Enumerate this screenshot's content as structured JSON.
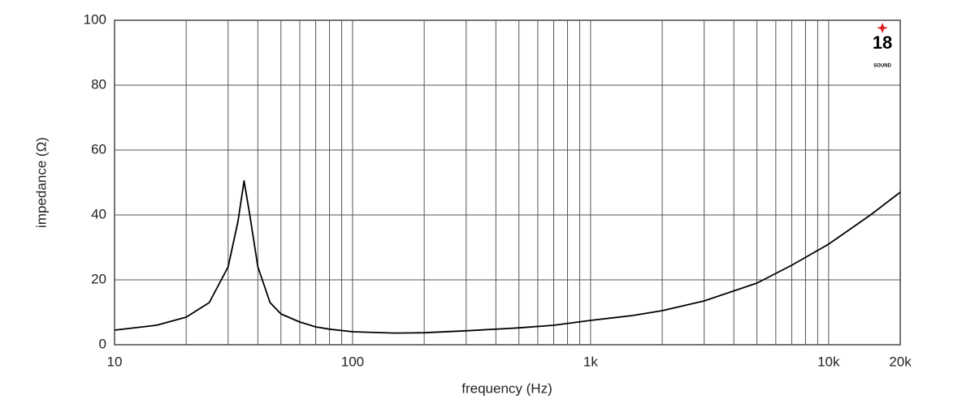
{
  "chart_data": {
    "type": "line",
    "x_label": "frequency (Hz)",
    "y_label": "impedance (Ω)",
    "x": [
      10,
      15,
      20,
      25,
      30,
      33,
      35,
      37,
      40,
      45,
      50,
      60,
      70,
      80,
      100,
      150,
      200,
      300,
      500,
      700,
      1000,
      1500,
      2000,
      3000,
      5000,
      7000,
      10000,
      15000,
      20000
    ],
    "values": [
      4.5,
      6,
      8.5,
      13,
      24,
      38,
      50.5,
      40,
      24,
      13,
      9.5,
      7,
      5.5,
      4.8,
      4,
      3.6,
      3.7,
      4.3,
      5.2,
      6,
      7.5,
      9,
      10.5,
      13.5,
      19,
      24.5,
      31,
      40,
      47
    ],
    "color": "#000000",
    "xlim": [
      10,
      20000
    ],
    "ylim": [
      0,
      100
    ],
    "x_log": true,
    "grid": true,
    "xticks": [
      10,
      100,
      {
        "value": 1000,
        "label": "1k"
      },
      {
        "value": 10000,
        "label": "10k"
      },
      {
        "value": 20000,
        "label": "20k"
      }
    ],
    "yticks": [
      0,
      20,
      40,
      60,
      80,
      100
    ],
    "logo": {
      "number": "18",
      "text": "SOUND"
    }
  }
}
